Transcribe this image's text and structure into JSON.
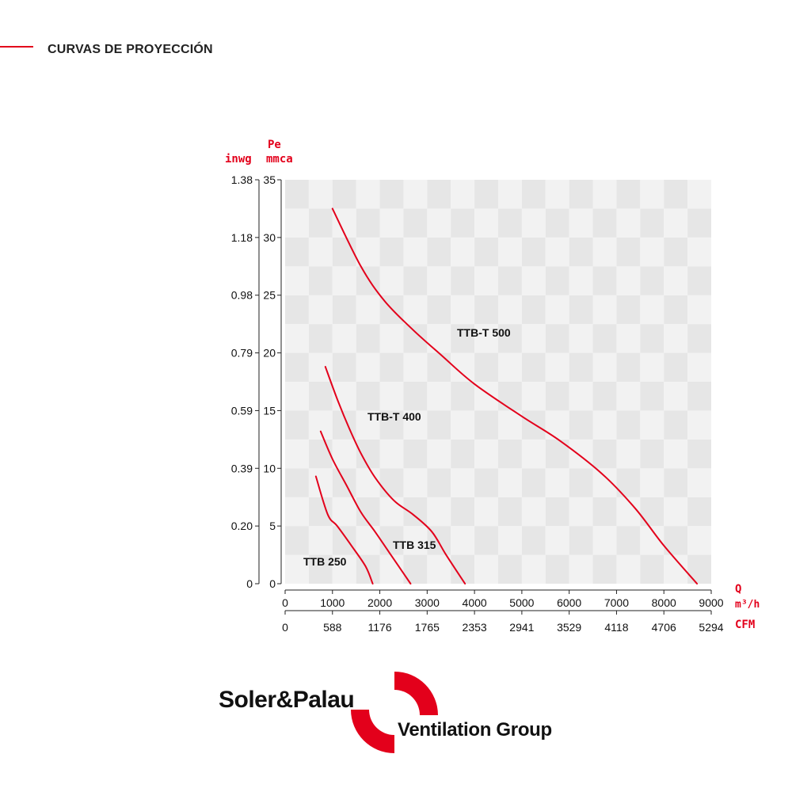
{
  "page": {
    "title": "CURVAS DE PROYECCIÓN"
  },
  "colors": {
    "accent": "#e3001b",
    "text": "#111111",
    "grid_light": "#f2f2f2",
    "grid_dark": "#e6e6e6"
  },
  "chart_data": {
    "type": "line",
    "title": "",
    "xlabel": "Q",
    "x_units": [
      "m³/h",
      "CFM"
    ],
    "ylabel": "Pe",
    "y_units": [
      "mmca",
      "inwg"
    ],
    "xlim": [
      0,
      9000
    ],
    "ylim": [
      0,
      35
    ],
    "grid": true,
    "x_ticks": [
      "0",
      "1000",
      "2000",
      "3000",
      "4000",
      "5000",
      "6000",
      "7000",
      "8000",
      "9000"
    ],
    "x_ticks_cfm": [
      "0",
      "588",
      "1176",
      "1765",
      "2353",
      "2941",
      "3529",
      "4118",
      "4706",
      "5294"
    ],
    "y_ticks": [
      "0",
      "5",
      "10",
      "15",
      "20",
      "25",
      "30",
      "35"
    ],
    "y_ticks_inwg": [
      "0",
      "0.20",
      "0.39",
      "0.59",
      "0.79",
      "0.98",
      "1.18",
      "1.38"
    ],
    "series": [
      {
        "name": "TTB 250",
        "points": [
          [
            650,
            9.3
          ],
          [
            900,
            6.0
          ],
          [
            1100,
            5.0
          ],
          [
            1400,
            3.3
          ],
          [
            1700,
            1.5
          ],
          [
            1850,
            0
          ]
        ]
      },
      {
        "name": "TTB 315",
        "points": [
          [
            750,
            13.2
          ],
          [
            1000,
            10.8
          ],
          [
            1300,
            8.5
          ],
          [
            1600,
            6.2
          ],
          [
            1900,
            4.5
          ],
          [
            2200,
            2.7
          ],
          [
            2650,
            0
          ]
        ]
      },
      {
        "name": "TTB-T 400",
        "points": [
          [
            850,
            18.8
          ],
          [
            1100,
            16.0
          ],
          [
            1350,
            13.5
          ],
          [
            1600,
            11.3
          ],
          [
            1900,
            9.2
          ],
          [
            2300,
            7.2
          ],
          [
            2700,
            6.0
          ],
          [
            3100,
            4.5
          ],
          [
            3400,
            2.5
          ],
          [
            3800,
            0
          ]
        ]
      },
      {
        "name": "TTB-T 500",
        "points": [
          [
            1000,
            32.5
          ],
          [
            1600,
            27.5
          ],
          [
            2100,
            24.5
          ],
          [
            2700,
            22.0
          ],
          [
            3300,
            19.8
          ],
          [
            4000,
            17.3
          ],
          [
            5000,
            14.5
          ],
          [
            5800,
            12.4
          ],
          [
            6700,
            9.5
          ],
          [
            7400,
            6.5
          ],
          [
            8000,
            3.3
          ],
          [
            8700,
            0
          ]
        ]
      }
    ],
    "annotations": [
      "TTB-T 500",
      "TTB-T 400",
      "TTB 315",
      "TTB 250"
    ]
  },
  "logo": {
    "brand": "Soler&Palau",
    "tagline": "Ventilation Group"
  }
}
